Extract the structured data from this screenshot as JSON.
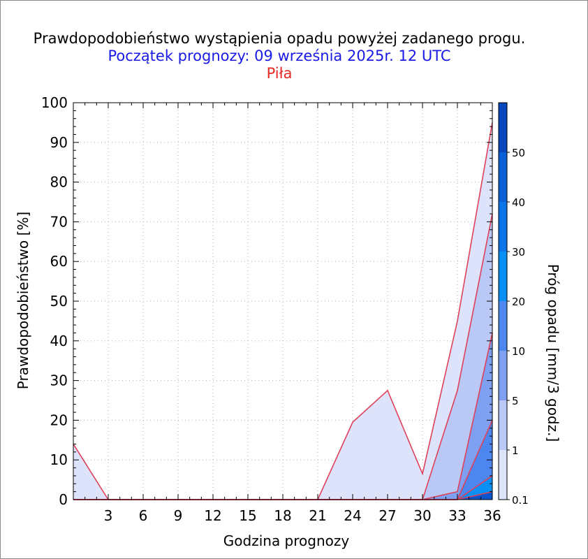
{
  "title": "Prawdopodobieństwo wystąpienia opadu powyżej zadanego progu.",
  "subtitle": "Początek prognozy: 09 września 2025r. 12 UTC",
  "location": "Piła",
  "chart_data": {
    "type": "area",
    "xlabel": "Godzina prognozy",
    "ylabel": "Prawdopodobieństwo [%]",
    "colorbar_label": "Próg opadu [mm/3 godz.]",
    "xlim": [
      0,
      36
    ],
    "ylim": [
      0,
      100
    ],
    "x_ticks": [
      3,
      6,
      9,
      12,
      15,
      18,
      21,
      24,
      27,
      30,
      33,
      36
    ],
    "y_ticks": [
      0,
      10,
      20,
      30,
      40,
      50,
      60,
      70,
      80,
      90,
      100
    ],
    "x": [
      0,
      3,
      6,
      9,
      12,
      15,
      18,
      21,
      24,
      27,
      30,
      33,
      36
    ],
    "series": [
      {
        "threshold": "0.1",
        "color": "#dde3fa",
        "values": [
          14,
          0,
          0,
          0,
          0,
          0,
          0,
          0,
          19.5,
          27.5,
          6.5,
          45,
          95
        ]
      },
      {
        "threshold": "1",
        "color": "#b9c8f5",
        "values": [
          0,
          0,
          0,
          0,
          0,
          0,
          0,
          0,
          0,
          0,
          0,
          27.5,
          72
        ]
      },
      {
        "threshold": "5",
        "color": "#7f9ff0",
        "values": [
          0,
          0,
          0,
          0,
          0,
          0,
          0,
          0,
          0,
          0,
          0,
          2,
          42
        ]
      },
      {
        "threshold": "10",
        "color": "#4d86ee",
        "values": [
          0,
          0,
          0,
          0,
          0,
          0,
          0,
          0,
          0,
          0,
          0,
          0,
          20
        ]
      },
      {
        "threshold": "20",
        "color": "#0a8ff5",
        "values": [
          0,
          0,
          0,
          0,
          0,
          0,
          0,
          0,
          0,
          0,
          0,
          0,
          6
        ]
      },
      {
        "threshold": "30",
        "color": "#0b55cc",
        "values": [
          0,
          0,
          0,
          0,
          0,
          0,
          0,
          0,
          0,
          0,
          0,
          0,
          2
        ]
      }
    ],
    "colorbar": {
      "tick_labels": [
        "0.1",
        "1",
        "5",
        "10",
        "20",
        "30",
        "40",
        "50"
      ],
      "colors": [
        "#dde3fa",
        "#b9c8f5",
        "#7f9ff0",
        "#4d86ee",
        "#0a8ff5",
        "#0b74e6",
        "#0b5fd6",
        "#0847bb",
        "#0533a3"
      ]
    },
    "outline_color": "#e0405a",
    "grid": true
  }
}
